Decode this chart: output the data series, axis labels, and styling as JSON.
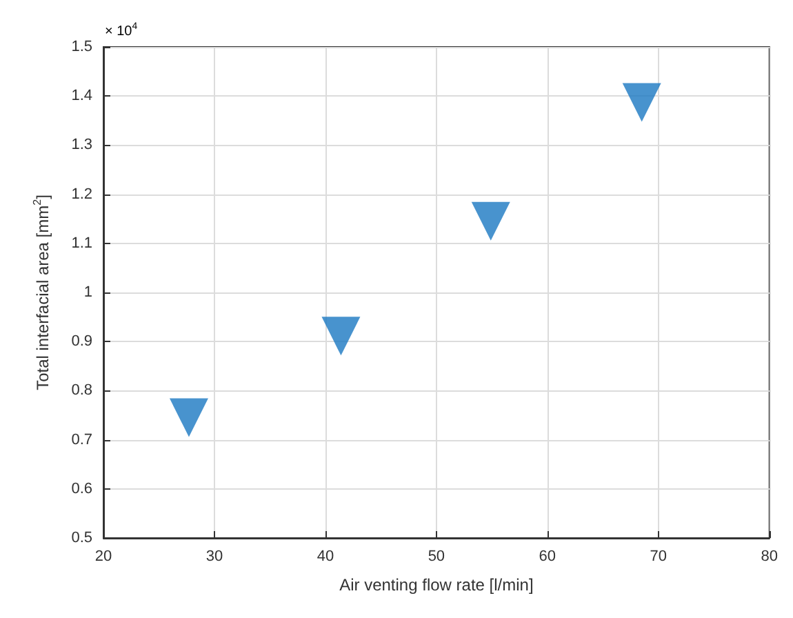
{
  "chart_data": {
    "type": "scatter",
    "xlabel": "Air venting flow rate [l/min]",
    "ylabel": "Total interfacial area [mm$^{2}$]",
    "annotations": [
      "× 10$^{4}$"
    ],
    "x": [
      27.7,
      41.4,
      54.9,
      68.5
    ],
    "series": [
      {
        "color": "#1a78c2",
        "values": [
          0.745,
          0.911,
          1.145,
          1.387
        ]
      }
    ],
    "xlim": [
      20,
      80
    ],
    "xticks": [
      20,
      30,
      40,
      50,
      60,
      70,
      80
    ],
    "ylim": [
      0.5,
      1.5
    ],
    "yticks": [
      0.5,
      0.6,
      0.7,
      0.8,
      0.9,
      1,
      1.1,
      1.2,
      1.3,
      1.4,
      1.5
    ],
    "grid": true,
    "marker": "triangle"
  }
}
